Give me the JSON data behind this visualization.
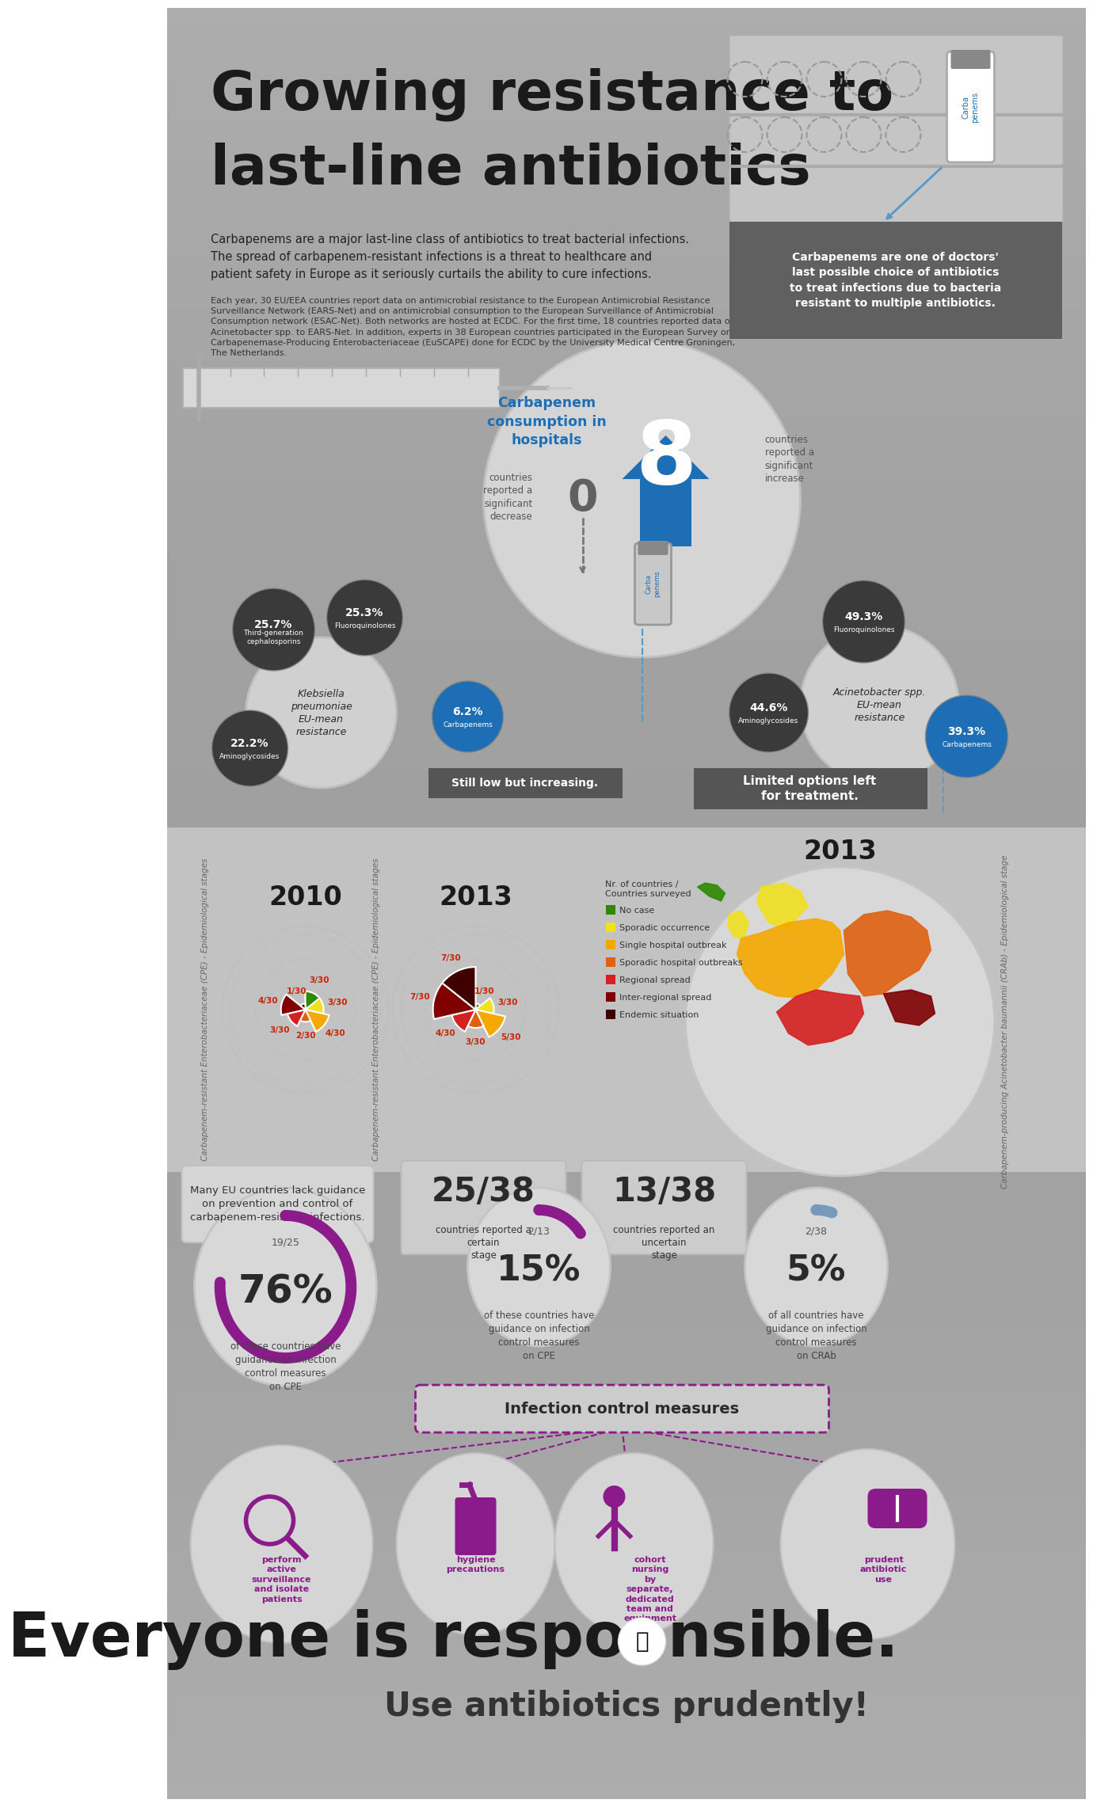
{
  "title_line1": "Growing resistance to",
  "title_line2": "last-line antibiotics",
  "bg_top": "#a8a8a8",
  "bg_mid": "#b0b0b0",
  "bg_bot": "#a0a0a0",
  "blue": "#1e6eb5",
  "purple": "#8b1a8b",
  "dark_gray": "#3d3d3d",
  "callout_bg": "#606060",
  "subtitle": "Carbapenems are a major last-line class of antibiotics to treat bacterial infections.\nThe spread of carbapenem-resistant infections is a threat to healthcare and\npatient safety in Europe as it seriously curtails the ability to cure infections.",
  "body_text": "Each year, 30 EU/EEA countries report data on antimicrobial resistance to the European Antimicrobial Resistance\nSurveillance Network (EARS-Net) and on antimicrobial consumption to the European Surveillance of Antimicrobial\nConsumption network (ESAC-Net). Both networks are hosted at ECDC. For the first time, 18 countries reported data on\nAcinetobacter spp. to EARS-Net. In addition, experts in 38 European countries participated in the European Survey on\nCarbapenemase-Producing Enterobacteriaceae (EuSCAPE) done for ECDC by the University Medical Centre Groningen,\nThe Netherlands.",
  "callout_text": "Carbapenems are one of doctors'\nlast possible choice of antibiotics\nto treat infections due to bacteria\nresistant to multiple antibiotics.",
  "consumption_title": "Carbapenem\nconsumption in\nhospitals",
  "kp_label": "Klebsiella\npneumoniae\nEU-mean\nresistance",
  "ac_label": "Acinetobacter spp.\nEU-mean\nresistance",
  "kp_data": [
    {
      "val": "25.7%",
      "lbl": "Third-generation\ncephalosporins",
      "col": "#3a3a3a"
    },
    {
      "val": "25.3%",
      "lbl": "Fluoroquinolones",
      "col": "#3a3a3a"
    },
    {
      "val": "22.2%",
      "lbl": "Aminoglycosides",
      "col": "#3a3a3a"
    },
    {
      "val": "6.2%",
      "lbl": "Carbapenems",
      "col": "#1e6eb5"
    }
  ],
  "ac_data": [
    {
      "val": "49.3%",
      "lbl": "Fluoroquinolones",
      "col": "#3a3a3a"
    },
    {
      "val": "44.6%",
      "lbl": "Aminoglycosides",
      "col": "#3a3a3a"
    },
    {
      "val": "39.3%",
      "lbl": "Carbapenems",
      "col": "#1e6eb5"
    }
  ],
  "still_low": "Still low but increasing.",
  "limited_options": "Limited options left\nfor treatment.",
  "pie_colors": [
    "#2d8a00",
    "#f0e020",
    "#f5a800",
    "#e06010",
    "#d42020",
    "#800000",
    "#400000"
  ],
  "legend_labels": [
    "No case",
    "Sporadic occurrence",
    "Single hospital outbreak",
    "Sporadic hospital outbreaks",
    "Regional spread",
    "Inter-regional spread",
    "Endemic situation"
  ],
  "cpe_2010_data": [
    3,
    3,
    4,
    2,
    3,
    4,
    1
  ],
  "cpe_2013_data": [
    1,
    3,
    5,
    3,
    4,
    7,
    7
  ],
  "guidance_text": "Many EU countries lack guidance\non prevention and control of\ncarbapenem-resistant infections.",
  "certain_num": "25/38",
  "certain_sub": "countries reported a\ncertain\nstage",
  "uncertain_num": "13/38",
  "uncertain_sub": "countries reported an\nuncertain\nstage",
  "pct76": "76%",
  "frac76": "19/25",
  "txt76": "of these countries have\nguidance on infection\ncontrol measures\non CPE",
  "pct15": "15%",
  "frac15": "2/13",
  "txt15": "of these countries have\nguidance on infection\ncontrol measures\non CPE",
  "pct5": "5%",
  "frac5": "2/38",
  "txt5": "of all countries have\nguidance on infection\ncontrol measures\non CRAb",
  "ic_title": "Infection control measures",
  "ic1": "perform\nactive\nsurveillance\nand isolate\npatients",
  "ic2": "hygiene\nprecautions",
  "ic3": "cohort\nnursing\nby\nseparate,\ndedicated\nteam and\nequipment",
  "ic4": "prudent\nantibiotic\nuse",
  "footer_main1": "Everyone is respo",
  "footer_main2": "nsible.",
  "footer_sub": "Use antibiotics prudently!"
}
